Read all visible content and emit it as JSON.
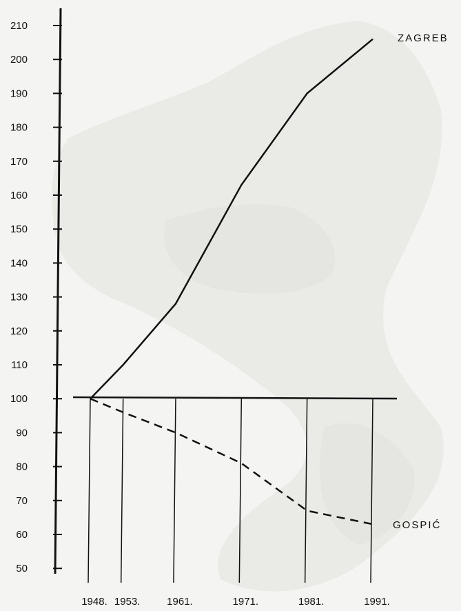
{
  "chart_data": {
    "type": "line",
    "title": "",
    "xlabel": "",
    "ylabel": "",
    "x": [
      "1948.",
      "1953.",
      "1961.",
      "1971.",
      "1981.",
      "1991."
    ],
    "x_values": [
      1948,
      1953,
      1961,
      1971,
      1981,
      1991
    ],
    "ylim": [
      45,
      212
    ],
    "y_ticks": [
      50,
      60,
      70,
      80,
      90,
      100,
      110,
      120,
      130,
      140,
      150,
      160,
      170,
      180,
      190,
      200,
      210
    ],
    "baseline": 100,
    "grid": false,
    "series": [
      {
        "name": "ZAGREB",
        "style": "solid",
        "color": "#111111",
        "values": [
          100,
          110,
          128,
          163,
          190,
          206
        ]
      },
      {
        "name": "GOSPIĆ",
        "style": "dashed",
        "color": "#111111",
        "values": [
          100,
          96,
          90,
          81,
          67,
          63
        ]
      }
    ]
  },
  "colors": {
    "background": "#f4f4f2",
    "ink": "#111111",
    "watermark": "#d6d6d2"
  }
}
